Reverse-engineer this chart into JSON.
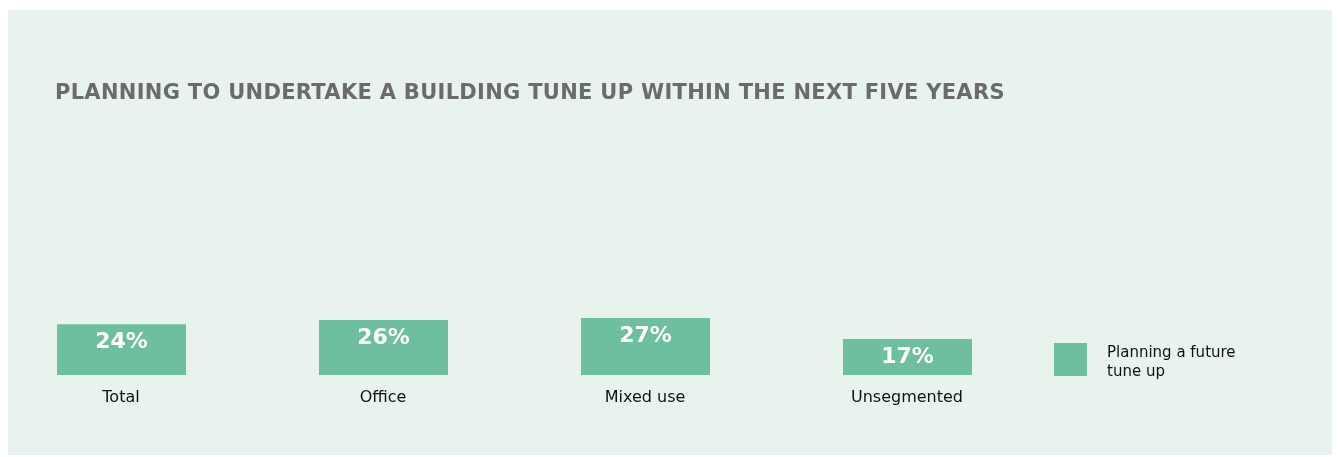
{
  "chart_data": {
    "type": "bar",
    "title": "PLANNING TO UNDERTAKE A BUILDING TUNE UP WITHIN THE NEXT FIVE YEARS",
    "categories": [
      "Total",
      "Office",
      "Mixed use",
      "Unsegmented"
    ],
    "series": [
      {
        "name": "Planning a future tune up",
        "color": "#6dbf9e",
        "values": [
          24,
          26,
          27,
          17
        ],
        "value_labels": [
          "24%",
          "26%",
          "27%",
          "17%"
        ]
      }
    ],
    "legend": "right",
    "grid": false
  }
}
